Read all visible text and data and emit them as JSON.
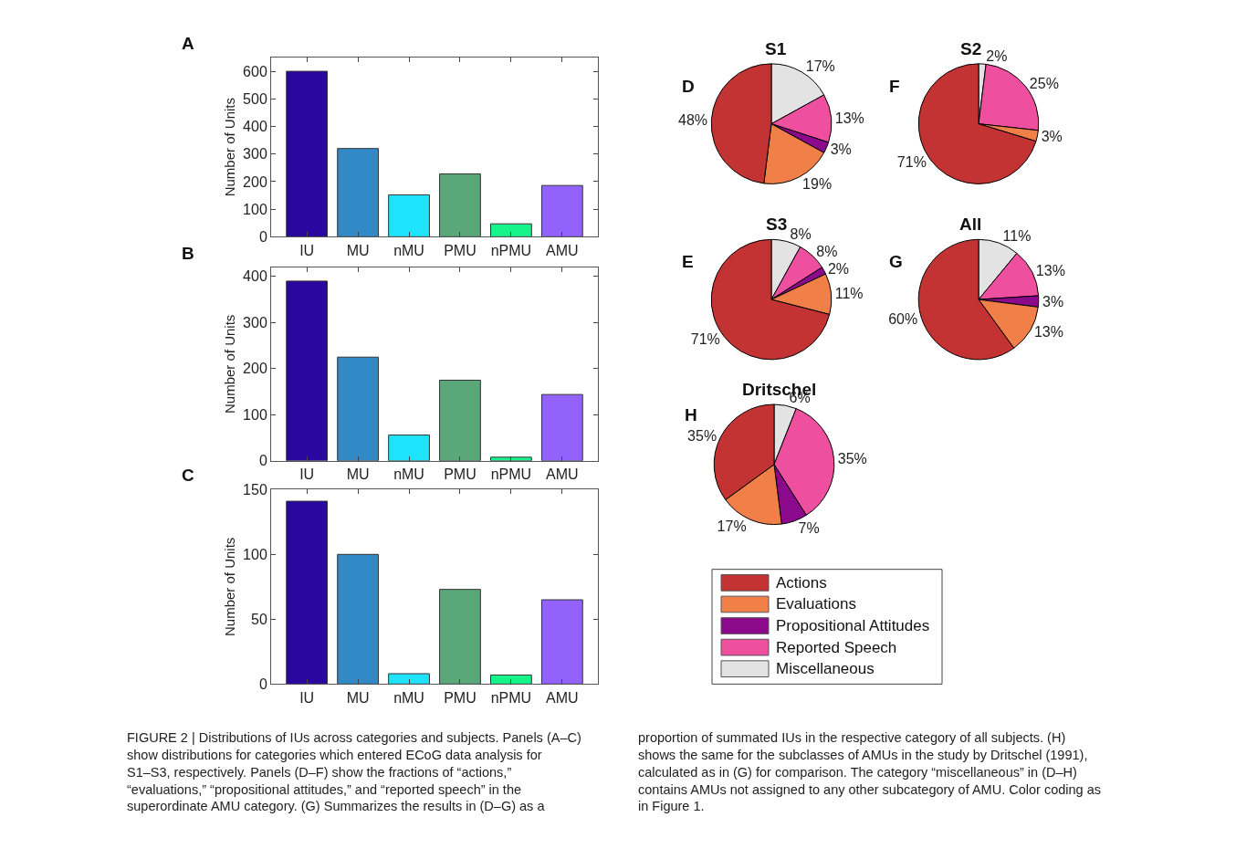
{
  "chart_data": [
    {
      "type": "bar",
      "annotations": [
        "A"
      ],
      "ylabel": "Number of Units",
      "categories": [
        "IU",
        "MU",
        "nMU",
        "PMU",
        "nPMU",
        "AMU"
      ],
      "values": [
        600,
        320,
        152,
        228,
        47,
        186
      ],
      "colors": [
        "#2a079e",
        "#3389c6",
        "#1ee3fa",
        "#5aa87a",
        "#17f58a",
        "#9362fc"
      ],
      "ylim": [
        0,
        650
      ],
      "yticks": [
        0,
        100,
        200,
        300,
        400,
        500,
        600
      ]
    },
    {
      "type": "bar",
      "annotations": [
        "B"
      ],
      "ylabel": "Number of Units",
      "categories": [
        "IU",
        "MU",
        "nMU",
        "PMU",
        "nPMU",
        "AMU"
      ],
      "values": [
        390,
        225,
        56,
        175,
        8,
        144
      ],
      "colors": [
        "#2a079e",
        "#3389c6",
        "#1ee3fa",
        "#5aa87a",
        "#17f58a",
        "#9362fc"
      ],
      "ylim": [
        0,
        420
      ],
      "yticks": [
        0,
        100,
        200,
        300,
        400
      ]
    },
    {
      "type": "bar",
      "annotations": [
        "C"
      ],
      "ylabel": "Number of Units",
      "categories": [
        "IU",
        "MU",
        "nMU",
        "PMU",
        "nPMU",
        "AMU"
      ],
      "values": [
        141,
        100,
        8,
        73,
        7,
        65
      ],
      "colors": [
        "#2a079e",
        "#3389c6",
        "#1ee3fa",
        "#5aa87a",
        "#17f58a",
        "#9362fc"
      ],
      "ylim": [
        0,
        150
      ],
      "yticks": [
        0,
        50,
        100,
        150
      ]
    },
    {
      "type": "pie",
      "title": "S1",
      "annotations": [
        "D"
      ],
      "values": [
        17,
        13,
        3,
        19,
        48
      ],
      "value_labels": [
        "17%",
        "13%",
        "3%",
        "19%",
        "48%"
      ],
      "colors": [
        "#e3e3e3",
        "#ee4f9e",
        "#8b0a8b",
        "#f08048",
        "#c43333"
      ]
    },
    {
      "type": "pie",
      "title": "S2",
      "annotations": [
        "F"
      ],
      "values": [
        2,
        25,
        3,
        71
      ],
      "value_labels": [
        "2%",
        "25%",
        "3%",
        "71%"
      ],
      "colors": [
        "#e3e3e3",
        "#ee4f9e",
        "#f08048",
        "#c43333"
      ]
    },
    {
      "type": "pie",
      "title": "S3",
      "annotations": [
        "E"
      ],
      "values": [
        8,
        8,
        2,
        11,
        71
      ],
      "value_labels": [
        "8%",
        "8%",
        "2%",
        "11%",
        "71%"
      ],
      "colors": [
        "#e3e3e3",
        "#ee4f9e",
        "#8b0a8b",
        "#f08048",
        "#c43333"
      ]
    },
    {
      "type": "pie",
      "title": "All",
      "annotations": [
        "G"
      ],
      "values": [
        11,
        13,
        3,
        13,
        60
      ],
      "value_labels": [
        "11%",
        "13%",
        "3%",
        "13%",
        "60%"
      ],
      "colors": [
        "#e3e3e3",
        "#ee4f9e",
        "#8b0a8b",
        "#f08048",
        "#c43333"
      ]
    },
    {
      "type": "pie",
      "title": "Dritschel",
      "annotations": [
        "H"
      ],
      "categories": [
        "Miscellaneous",
        "Reported Speech",
        "Propositional Attitudes",
        "Evaluations",
        "Actions"
      ],
      "values": [
        6,
        35,
        7,
        17,
        35
      ],
      "value_labels": [
        "6%",
        "35%",
        "7%",
        "17%",
        "35%"
      ],
      "colors": [
        "#e3e3e3",
        "#ee4f9e",
        "#8b0a8b",
        "#f08048",
        "#c43333"
      ],
      "legend": "bottom"
    },
    {
      "type": "other",
      "annotations": [
        "FIGURE 2 | Distributions of IUs across categories and subjects. Panels (A–C) show distributions for categories which entered ECoG data analysis for S1–S3, respectively. Panels (D–F) show the fractions of “actions,” “evaluations,” “propositional attitudes,” and “reported speech” in the superordinate AMU category. (G) Summarizes the results in (D–G) as a",
        "proportion of summated IUs in the respective category of all subjects. (H) shows the same for the subclasses of AMUs in the study by Dritschel (1991), calculated as in (G) for comparison. The category “miscellaneous” in (D–H) contains AMUs not assigned to any other subcategory of AMU. Color coding as in Figure 1."
      ]
    }
  ]
}
